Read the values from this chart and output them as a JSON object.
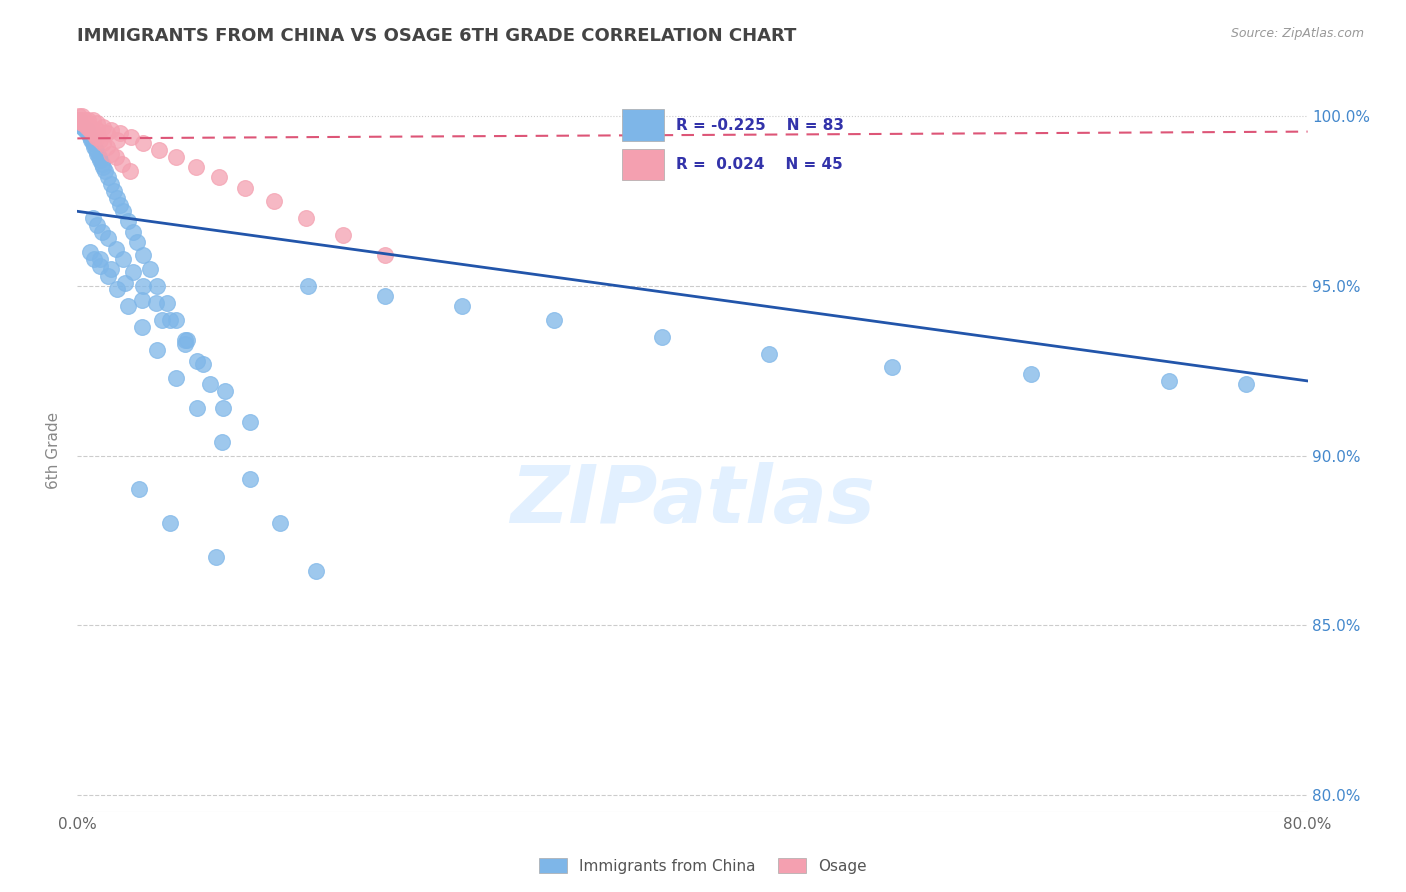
{
  "title": "IMMIGRANTS FROM CHINA VS OSAGE 6TH GRADE CORRELATION CHART",
  "source_text": "Source: ZipAtlas.com",
  "ylabel": "6th Grade",
  "xlim": [
    0.0,
    0.8
  ],
  "ylim": [
    0.795,
    1.008
  ],
  "x_tick_positions": [
    0.0,
    0.1,
    0.2,
    0.3,
    0.4,
    0.5,
    0.6,
    0.7,
    0.8
  ],
  "x_tick_labels": [
    "0.0%",
    "",
    "",
    "",
    "",
    "",
    "",
    "",
    "80.0%"
  ],
  "y_tick_positions": [
    0.8,
    0.85,
    0.9,
    0.95,
    1.0
  ],
  "y_tick_labels": [
    "80.0%",
    "85.0%",
    "90.0%",
    "95.0%",
    "100.0%"
  ],
  "blue_color": "#7EB6E8",
  "pink_color": "#F4A0B0",
  "trendline_blue_color": "#2255AA",
  "trendline_pink_color": "#DD5577",
  "legend_R_blue": "-0.225",
  "legend_N_blue": "83",
  "legend_R_pink": "0.024",
  "legend_N_pink": "45",
  "watermark": "ZIPatlas",
  "blue_scatter_x": [
    0.001,
    0.002,
    0.003,
    0.004,
    0.005,
    0.006,
    0.007,
    0.008,
    0.009,
    0.01,
    0.011,
    0.012,
    0.013,
    0.014,
    0.015,
    0.016,
    0.017,
    0.018,
    0.02,
    0.022,
    0.024,
    0.026,
    0.028,
    0.03,
    0.033,
    0.036,
    0.039,
    0.043,
    0.047,
    0.052,
    0.058,
    0.064,
    0.071,
    0.078,
    0.086,
    0.095,
    0.01,
    0.013,
    0.016,
    0.02,
    0.025,
    0.03,
    0.036,
    0.043,
    0.051,
    0.06,
    0.07,
    0.082,
    0.096,
    0.112,
    0.008,
    0.011,
    0.015,
    0.02,
    0.026,
    0.033,
    0.042,
    0.052,
    0.064,
    0.078,
    0.094,
    0.112,
    0.132,
    0.155,
    0.015,
    0.022,
    0.031,
    0.042,
    0.055,
    0.07,
    0.15,
    0.2,
    0.25,
    0.31,
    0.38,
    0.45,
    0.53,
    0.62,
    0.71,
    0.76,
    0.04,
    0.06,
    0.09
  ],
  "blue_scatter_y": [
    0.999,
    0.998,
    0.997,
    0.997,
    0.996,
    0.996,
    0.995,
    0.994,
    0.993,
    0.992,
    0.991,
    0.99,
    0.989,
    0.988,
    0.987,
    0.986,
    0.985,
    0.984,
    0.982,
    0.98,
    0.978,
    0.976,
    0.974,
    0.972,
    0.969,
    0.966,
    0.963,
    0.959,
    0.955,
    0.95,
    0.945,
    0.94,
    0.934,
    0.928,
    0.921,
    0.914,
    0.97,
    0.968,
    0.966,
    0.964,
    0.961,
    0.958,
    0.954,
    0.95,
    0.945,
    0.94,
    0.934,
    0.927,
    0.919,
    0.91,
    0.96,
    0.958,
    0.956,
    0.953,
    0.949,
    0.944,
    0.938,
    0.931,
    0.923,
    0.914,
    0.904,
    0.893,
    0.88,
    0.866,
    0.958,
    0.955,
    0.951,
    0.946,
    0.94,
    0.933,
    0.95,
    0.947,
    0.944,
    0.94,
    0.935,
    0.93,
    0.926,
    0.924,
    0.922,
    0.921,
    0.89,
    0.88,
    0.87
  ],
  "pink_scatter_x": [
    0.001,
    0.002,
    0.003,
    0.004,
    0.005,
    0.006,
    0.007,
    0.008,
    0.009,
    0.01,
    0.011,
    0.012,
    0.013,
    0.015,
    0.017,
    0.019,
    0.022,
    0.025,
    0.029,
    0.034,
    0.001,
    0.003,
    0.005,
    0.007,
    0.01,
    0.013,
    0.017,
    0.022,
    0.028,
    0.035,
    0.043,
    0.053,
    0.064,
    0.077,
    0.092,
    0.109,
    0.128,
    0.149,
    0.173,
    0.2,
    0.004,
    0.008,
    0.013,
    0.019,
    0.026
  ],
  "pink_scatter_y": [
    0.999,
    0.999,
    0.998,
    0.998,
    0.998,
    0.997,
    0.997,
    0.996,
    0.996,
    0.995,
    0.995,
    0.994,
    0.994,
    0.993,
    0.992,
    0.991,
    0.989,
    0.988,
    0.986,
    0.984,
    1.0,
    1.0,
    0.999,
    0.999,
    0.999,
    0.998,
    0.997,
    0.996,
    0.995,
    0.994,
    0.992,
    0.99,
    0.988,
    0.985,
    0.982,
    0.979,
    0.975,
    0.97,
    0.965,
    0.959,
    0.998,
    0.997,
    0.996,
    0.995,
    0.993
  ],
  "blue_trendline_x0": 0.0,
  "blue_trendline_x1": 0.8,
  "blue_trendline_y0": 0.972,
  "blue_trendline_y1": 0.922,
  "pink_trendline_x0": 0.0,
  "pink_trendline_x1": 0.8,
  "pink_trendline_y0": 0.9935,
  "pink_trendline_y1": 0.9955
}
